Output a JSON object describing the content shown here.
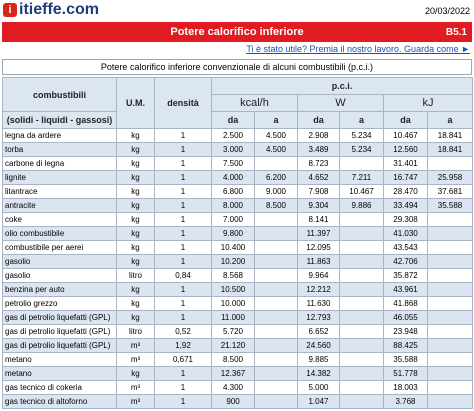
{
  "header": {
    "logo": "itieffe.com",
    "date": "20/03/2022",
    "title": "Potere calorifico inferiore",
    "code": "B5.1",
    "link": "Ti è stato utile? Premia il nostro lavoro. Guarda come ►"
  },
  "table": {
    "caption": "Potere calorifico inferiore convenzionale di alcuni combustibili (p.c.i.)",
    "header": {
      "fuel": "combustibili",
      "fuel_note": "(solidi - liquidi - gassosi)",
      "unit": "U.M.",
      "density": "densità",
      "pci": "p.c.i.",
      "kcal": "kcal/h",
      "w": "W",
      "kj": "kJ",
      "range": [
        "da",
        "a",
        "da",
        "a",
        "da",
        "a"
      ]
    },
    "rows": [
      [
        "legna da ardere",
        "kg",
        "1",
        "2.500",
        "4.500",
        "2.908",
        "5.234",
        "10.467",
        "18.841"
      ],
      [
        "torba",
        "kg",
        "1",
        "3.000",
        "4.500",
        "3.489",
        "5.234",
        "12.560",
        "18.841"
      ],
      [
        "carbone di legna",
        "kg",
        "1",
        "7.500",
        null,
        "8.723",
        null,
        "31.401",
        null
      ],
      [
        "lignite",
        "kg",
        "1",
        "4.000",
        "6.200",
        "4.652",
        "7.211",
        "16.747",
        "25.958"
      ],
      [
        "litantrace",
        "kg",
        "1",
        "6.800",
        "9.000",
        "7.908",
        "10.467",
        "28.470",
        "37.681"
      ],
      [
        "antracite",
        "kg",
        "1",
        "8.000",
        "8.500",
        "9.304",
        "9.886",
        "33.494",
        "35.588"
      ],
      [
        "coke",
        "kg",
        "1",
        "7.000",
        null,
        "8.141",
        null,
        "29.308",
        null
      ],
      [
        "olio combustibile",
        "kg",
        "1",
        "9.800",
        null,
        "11.397",
        null,
        "41.030",
        null
      ],
      [
        "combustibile per aerei",
        "kg",
        "1",
        "10.400",
        null,
        "12.095",
        null,
        "43.543",
        null
      ],
      [
        "gasolio",
        "kg",
        "1",
        "10.200",
        null,
        "11.863",
        null,
        "42.706",
        null
      ],
      [
        "gasolio",
        "litro",
        "0,84",
        "8.568",
        null,
        "9.964",
        null,
        "35.872",
        null
      ],
      [
        "benzina per auto",
        "kg",
        "1",
        "10.500",
        null,
        "12.212",
        null,
        "43.961",
        null
      ],
      [
        "petrolio grezzo",
        "kg",
        "1",
        "10.000",
        null,
        "11.630",
        null,
        "41.868",
        null
      ],
      [
        "gas di petrolio liquefatti (GPL)",
        "kg",
        "1",
        "11.000",
        null,
        "12.793",
        null,
        "46.055",
        null
      ],
      [
        "gas di petrolio liquefatti (GPL)",
        "litro",
        "0,52",
        "5.720",
        null,
        "6.652",
        null,
        "23.948",
        null
      ],
      [
        "gas di petrolio liquefatti (GPL)",
        "m³",
        "1,92",
        "21.120",
        null,
        "24.560",
        null,
        "88.425",
        null
      ],
      [
        "metano",
        "m³",
        "0,671",
        "8.500",
        null,
        "9.885",
        null,
        "35.588",
        null
      ],
      [
        "metano",
        "kg",
        "1",
        "12.367",
        null,
        "14.382",
        null,
        "51.778",
        null
      ],
      [
        "gas tecnico di cokeria",
        "m³",
        "1",
        "4.300",
        null,
        "5.000",
        null,
        "18.003",
        null
      ],
      [
        "gas tecnico di altoforno",
        "m³",
        "1",
        "900",
        null,
        "1.047",
        null,
        "3.768",
        null
      ]
    ]
  }
}
